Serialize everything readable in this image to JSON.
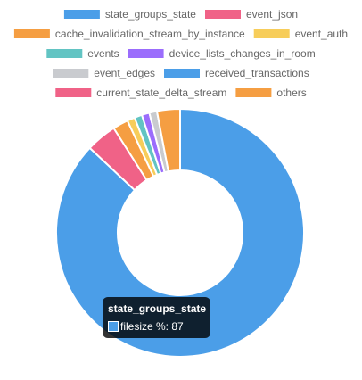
{
  "chart_data": {
    "type": "doughnut",
    "series_name": "filesize %",
    "labels": [
      "state_groups_state",
      "event_json",
      "cache_invalidation_stream_by_instance",
      "event_auth",
      "events",
      "device_lists_changes_in_room",
      "event_edges",
      "received_transactions",
      "current_state_delta_stream",
      "others"
    ],
    "values": [
      87,
      4,
      2,
      1,
      1,
      1,
      1,
      0,
      0,
      3
    ],
    "colors": [
      "#4b9ee8",
      "#f06287",
      "#f59e42",
      "#f7cd5a",
      "#62c4c3",
      "#9b6dfc",
      "#c9cbcf",
      "#4b9ee8",
      "#f06287",
      "#f59e42"
    ],
    "legend_position": "top"
  },
  "tooltip": {
    "title": "state_groups_state",
    "line": "filesize %: 87",
    "color": "#4b9ee8"
  }
}
